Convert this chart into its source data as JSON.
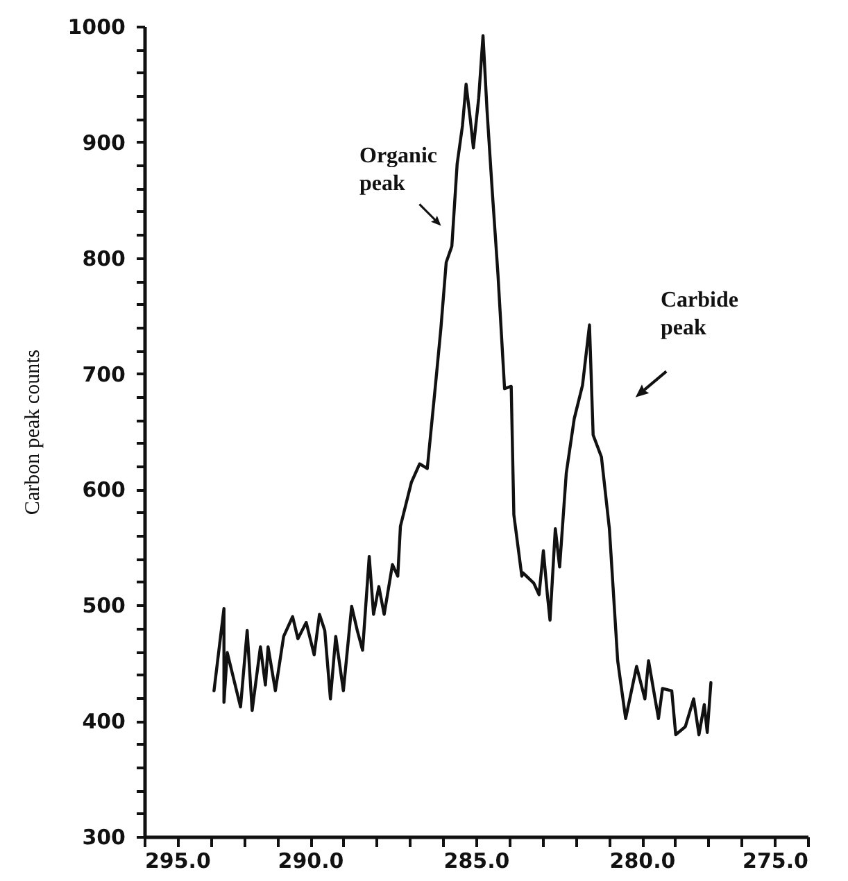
{
  "chart_data": {
    "type": "line",
    "ylabel": "Carbon peak counts",
    "xlim": [
      295,
      275
    ],
    "ylim": [
      300,
      1000
    ],
    "xticks": [
      {
        "value": 295,
        "label": "295.0"
      },
      {
        "value": 294,
        "label": null
      },
      {
        "value": 293,
        "label": null
      },
      {
        "value": 292,
        "label": null
      },
      {
        "value": 291,
        "label": null
      },
      {
        "value": 290,
        "label": "290.0"
      },
      {
        "value": 289,
        "label": null
      },
      {
        "value": 288,
        "label": null
      },
      {
        "value": 287,
        "label": null
      },
      {
        "value": 286,
        "label": null
      },
      {
        "value": 285,
        "label": "285.0"
      },
      {
        "value": 284,
        "label": null
      },
      {
        "value": 283,
        "label": null
      },
      {
        "value": 282,
        "label": null
      },
      {
        "value": 281,
        "label": null
      },
      {
        "value": 280,
        "label": "280.0"
      },
      {
        "value": 279,
        "label": null
      },
      {
        "value": 278,
        "label": null
      },
      {
        "value": 277,
        "label": null
      },
      {
        "value": 276,
        "label": null
      },
      {
        "value": 275,
        "label": "275.0"
      }
    ],
    "yticks": [
      300,
      {
        "value": 320,
        "label": null
      },
      {
        "value": 340,
        "label": null
      },
      {
        "value": 360,
        "label": null
      },
      {
        "value": 380,
        "label": null
      },
      400,
      {
        "value": 420,
        "label": null
      },
      {
        "value": 440,
        "label": null
      },
      {
        "value": 460,
        "label": null
      },
      {
        "value": 480,
        "label": null
      },
      500,
      {
        "value": 520,
        "label": null
      },
      {
        "value": 540,
        "label": null
      },
      {
        "value": 560,
        "label": null
      },
      {
        "value": 580,
        "label": null
      },
      600,
      {
        "value": 620,
        "label": null
      },
      {
        "value": 640,
        "label": null
      },
      {
        "value": 660,
        "label": null
      },
      {
        "value": 680,
        "label": null
      },
      700,
      {
        "value": 720,
        "label": null
      },
      {
        "value": 740,
        "label": null
      },
      {
        "value": 760,
        "label": null
      },
      {
        "value": 780,
        "label": null
      },
      800,
      {
        "value": 820,
        "label": null
      },
      {
        "value": 840,
        "label": null
      },
      {
        "value": 860,
        "label": null
      },
      {
        "value": 880,
        "label": null
      },
      900,
      {
        "value": 920,
        "label": null
      },
      {
        "value": 940,
        "label": null
      },
      {
        "value": 960,
        "label": null
      },
      {
        "value": 980,
        "label": null
      },
      1000
    ],
    "grid": false,
    "marker": "none",
    "line_style": "solid",
    "annotations": [
      "Organic peak",
      "Carbide peak"
    ],
    "series": [
      {
        "color": "#111111",
        "x": [
          292.9,
          292.6,
          292.6,
          292.5,
          292.1,
          291.9,
          291.75,
          291.5,
          291.35,
          291.27,
          291.05,
          290.8,
          290.53,
          290.37,
          290.12,
          289.88,
          289.72,
          289.56,
          289.39,
          289.23,
          289.0,
          288.75,
          288.58,
          288.42,
          288.22,
          288.09,
          287.93,
          287.77,
          287.52,
          287.36,
          287.28,
          286.95,
          286.7,
          286.47,
          286.22,
          286.06,
          285.9,
          285.73,
          285.57,
          285.41,
          285.3,
          285.17,
          285.08,
          284.92,
          284.79,
          284.67,
          284.51,
          284.34,
          284.14,
          283.94,
          283.86,
          283.62,
          283.59,
          283.26,
          283.1,
          282.97,
          282.85,
          282.77,
          282.61,
          282.48,
          282.28,
          282.04,
          281.79,
          281.58,
          281.47,
          281.22,
          280.98,
          280.73,
          280.49,
          280.16,
          279.91,
          279.8,
          279.5,
          279.38,
          279.1,
          278.98,
          278.69,
          278.44,
          278.28,
          278.12,
          278.03,
          277.92
        ],
        "values": [
          426,
          497,
          416,
          459,
          412,
          478,
          409,
          464,
          431,
          464,
          426,
          473,
          490,
          471,
          485,
          457,
          492,
          478,
          419,
          473,
          426,
          499,
          478,
          461,
          542,
          492,
          516,
          492,
          535,
          525,
          568,
          606,
          622,
          618,
          691,
          739,
          796,
          810,
          881,
          914,
          950,
          919,
          895,
          938,
          992,
          928,
          857,
          786,
          687,
          689,
          578,
          525,
          528,
          519,
          509,
          547,
          509,
          487,
          566,
          533,
          614,
          661,
          690,
          742,
          647,
          628,
          566,
          452,
          402,
          447,
          419,
          452,
          402,
          428,
          426,
          388,
          395,
          419,
          388,
          414,
          390,
          433
        ]
      }
    ]
  }
}
